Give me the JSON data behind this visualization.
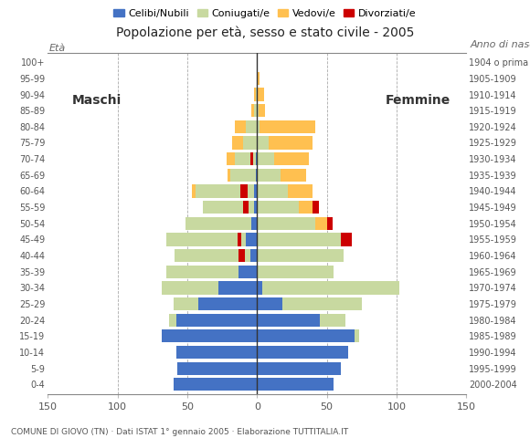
{
  "age_groups": [
    "0-4",
    "5-9",
    "10-14",
    "15-19",
    "20-24",
    "25-29",
    "30-34",
    "35-39",
    "40-44",
    "45-49",
    "50-54",
    "55-59",
    "60-64",
    "65-69",
    "70-74",
    "75-79",
    "80-84",
    "85-89",
    "90-94",
    "95-99",
    "100+"
  ],
  "birth_years": [
    "2000-2004",
    "1995-1999",
    "1990-1994",
    "1985-1989",
    "1980-1984",
    "1975-1979",
    "1970-1974",
    "1965-1969",
    "1960-1964",
    "1955-1959",
    "1950-1954",
    "1945-1949",
    "1940-1944",
    "1935-1939",
    "1930-1934",
    "1925-1929",
    "1920-1924",
    "1915-1919",
    "1910-1914",
    "1905-1909",
    "1904 o prima"
  ],
  "males": {
    "celibi": [
      60,
      57,
      58,
      68,
      58,
      42,
      28,
      13,
      5,
      8,
      4,
      2,
      2,
      1,
      1,
      0,
      0,
      0,
      0,
      0,
      0
    ],
    "coniugati": [
      0,
      0,
      0,
      0,
      5,
      18,
      40,
      52,
      54,
      57,
      47,
      37,
      42,
      18,
      15,
      10,
      8,
      2,
      1,
      0,
      0
    ],
    "vedovi": [
      0,
      0,
      0,
      0,
      0,
      0,
      0,
      0,
      0,
      0,
      0,
      0,
      3,
      2,
      6,
      8,
      8,
      2,
      1,
      0,
      0
    ],
    "divorziati": [
      0,
      0,
      0,
      0,
      0,
      0,
      0,
      0,
      4,
      3,
      0,
      4,
      5,
      0,
      2,
      0,
      0,
      0,
      0,
      0,
      0
    ]
  },
  "females": {
    "nubili": [
      55,
      60,
      65,
      70,
      45,
      18,
      4,
      0,
      0,
      0,
      0,
      0,
      0,
      0,
      0,
      0,
      0,
      0,
      0,
      0,
      0
    ],
    "coniugate": [
      0,
      0,
      0,
      3,
      18,
      57,
      98,
      55,
      62,
      60,
      42,
      30,
      22,
      17,
      12,
      8,
      2,
      1,
      0,
      0,
      0
    ],
    "vedove": [
      0,
      0,
      0,
      0,
      0,
      0,
      0,
      0,
      0,
      0,
      8,
      10,
      18,
      18,
      25,
      32,
      40,
      5,
      5,
      2,
      0
    ],
    "divorziate": [
      0,
      0,
      0,
      0,
      0,
      0,
      0,
      0,
      0,
      8,
      4,
      4,
      0,
      0,
      0,
      0,
      0,
      0,
      0,
      0,
      0
    ]
  },
  "colors": {
    "celibi": "#4472c4",
    "coniugati": "#c8d9a0",
    "vedovi": "#ffc050",
    "divorziati": "#cc0000"
  },
  "xlim": 150,
  "title": "Popolazione per età, sesso e stato civile - 2005",
  "footnote": "COMUNE DI GIOVO (TN) · Dati ISTAT 1° gennaio 2005 · Elaborazione TUTTITALIA.IT",
  "legend_labels": [
    "Celibi/Nubili",
    "Coniugati/e",
    "Vedovi/e",
    "Divorziati/e"
  ],
  "xlabel_left": "Maschi",
  "xlabel_right": "Femmine",
  "ylabel_left": "Età",
  "ylabel_right": "Anno di nascita"
}
